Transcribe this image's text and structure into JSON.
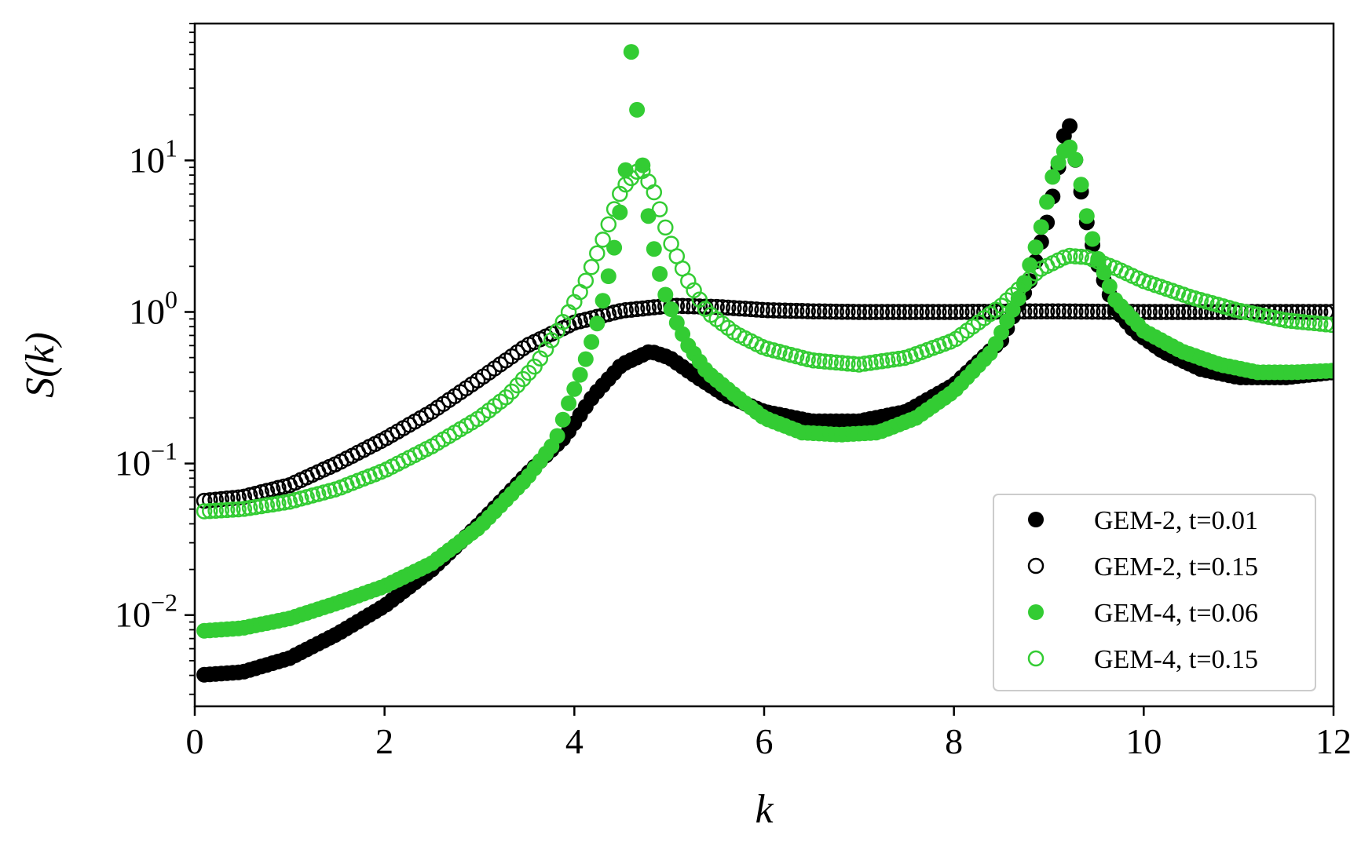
{
  "chart_data": {
    "type": "scatter",
    "title": "",
    "xlabel": "k",
    "ylabel": "S(k)",
    "xlim": [
      0,
      12
    ],
    "ylim": [
      0.0025,
      80
    ],
    "yscale": "log",
    "grid": false,
    "legend_position": "bottom-right",
    "x_ticks": [
      {
        "value": 0,
        "label": "0"
      },
      {
        "value": 2,
        "label": "2"
      },
      {
        "value": 4,
        "label": "4"
      },
      {
        "value": 6,
        "label": "6"
      },
      {
        "value": 8,
        "label": "8"
      },
      {
        "value": 10,
        "label": "10"
      },
      {
        "value": 12,
        "label": "12"
      }
    ],
    "y_ticks": [
      {
        "value": 0.01,
        "base": "10",
        "exp": "−2"
      },
      {
        "value": 0.1,
        "base": "10",
        "exp": "−1"
      },
      {
        "value": 1,
        "base": "10",
        "exp": "0"
      },
      {
        "value": 10,
        "base": "10",
        "exp": "1"
      }
    ],
    "series": [
      {
        "name": "GEM-2, t=0.01",
        "color": "#000000",
        "marker": "filled",
        "x_range": [
          0.1,
          12.0
        ],
        "x_step": 0.06,
        "curve": [
          [
            0.0,
            0.004
          ],
          [
            0.5,
            0.0042
          ],
          [
            1.0,
            0.0052
          ],
          [
            1.5,
            0.0075
          ],
          [
            2.0,
            0.0115
          ],
          [
            2.5,
            0.02
          ],
          [
            3.0,
            0.04
          ],
          [
            3.5,
            0.085
          ],
          [
            3.9,
            0.15
          ],
          [
            4.2,
            0.28
          ],
          [
            4.5,
            0.45
          ],
          [
            4.8,
            0.55
          ],
          [
            5.0,
            0.5
          ],
          [
            5.3,
            0.37
          ],
          [
            5.6,
            0.28
          ],
          [
            6.0,
            0.22
          ],
          [
            6.5,
            0.19
          ],
          [
            7.0,
            0.19
          ],
          [
            7.5,
            0.22
          ],
          [
            8.0,
            0.33
          ],
          [
            8.5,
            0.65
          ],
          [
            8.8,
            1.6
          ],
          [
            9.0,
            4.3
          ],
          [
            9.1,
            9.0
          ],
          [
            9.2,
            20.0
          ],
          [
            9.3,
            8.5
          ],
          [
            9.4,
            3.9
          ],
          [
            9.5,
            2.2
          ],
          [
            9.6,
            1.5
          ],
          [
            9.7,
            1.05
          ],
          [
            9.9,
            0.75
          ],
          [
            10.2,
            0.55
          ],
          [
            10.6,
            0.42
          ],
          [
            11.0,
            0.37
          ],
          [
            11.5,
            0.37
          ],
          [
            12.0,
            0.4
          ]
        ]
      },
      {
        "name": "GEM-2, t=0.15",
        "color": "#000000",
        "marker": "open",
        "x_range": [
          0.1,
          12.0
        ],
        "x_step": 0.06,
        "curve": [
          [
            0.0,
            0.056
          ],
          [
            0.5,
            0.06
          ],
          [
            1.0,
            0.072
          ],
          [
            1.5,
            0.1
          ],
          [
            2.0,
            0.145
          ],
          [
            2.5,
            0.22
          ],
          [
            3.0,
            0.36
          ],
          [
            3.5,
            0.6
          ],
          [
            4.0,
            0.85
          ],
          [
            4.5,
            1.02
          ],
          [
            5.0,
            1.1
          ],
          [
            5.5,
            1.08
          ],
          [
            6.0,
            1.03
          ],
          [
            6.5,
            1.01
          ],
          [
            7.0,
            1.0
          ],
          [
            8.0,
            1.0
          ],
          [
            9.0,
            1.01
          ],
          [
            10.0,
            1.0
          ],
          [
            11.0,
            1.0
          ],
          [
            12.0,
            1.0
          ]
        ]
      },
      {
        "name": "GEM-4, t=0.06",
        "color": "#33cc33",
        "marker": "filled",
        "x_range": [
          0.1,
          12.0
        ],
        "x_step": 0.06,
        "curve": [
          [
            0.0,
            0.0078
          ],
          [
            0.5,
            0.0082
          ],
          [
            1.0,
            0.0095
          ],
          [
            1.5,
            0.012
          ],
          [
            2.0,
            0.0155
          ],
          [
            2.5,
            0.022
          ],
          [
            3.0,
            0.038
          ],
          [
            3.5,
            0.08
          ],
          [
            3.8,
            0.14
          ],
          [
            3.95,
            0.26
          ],
          [
            4.05,
            0.37
          ],
          [
            4.15,
            0.55
          ],
          [
            4.25,
            0.88
          ],
          [
            4.35,
            1.6
          ],
          [
            4.45,
            3.3
          ],
          [
            4.55,
            9.6
          ],
          [
            4.6,
            52.0
          ],
          [
            4.7,
            12.0
          ],
          [
            4.78,
            4.3
          ],
          [
            4.86,
            2.2
          ],
          [
            4.96,
            1.3
          ],
          [
            5.06,
            0.9
          ],
          [
            5.2,
            0.6
          ],
          [
            5.4,
            0.4
          ],
          [
            5.7,
            0.28
          ],
          [
            6.0,
            0.2
          ],
          [
            6.4,
            0.16
          ],
          [
            6.8,
            0.155
          ],
          [
            7.2,
            0.16
          ],
          [
            7.6,
            0.2
          ],
          [
            8.0,
            0.3
          ],
          [
            8.4,
            0.55
          ],
          [
            8.7,
            1.3
          ],
          [
            8.9,
            3.2
          ],
          [
            9.05,
            8.3
          ],
          [
            9.2,
            13.0
          ],
          [
            9.3,
            9.5
          ],
          [
            9.4,
            4.3
          ],
          [
            9.5,
            2.4
          ],
          [
            9.7,
            1.2
          ],
          [
            10.0,
            0.75
          ],
          [
            10.4,
            0.55
          ],
          [
            10.8,
            0.45
          ],
          [
            11.2,
            0.4
          ],
          [
            11.6,
            0.4
          ],
          [
            12.0,
            0.41
          ]
        ]
      },
      {
        "name": "GEM-4, t=0.15",
        "color": "#33cc33",
        "marker": "open",
        "x_range": [
          0.1,
          12.0
        ],
        "x_step": 0.06,
        "curve": [
          [
            0.0,
            0.048
          ],
          [
            0.5,
            0.05
          ],
          [
            1.0,
            0.056
          ],
          [
            1.5,
            0.068
          ],
          [
            2.0,
            0.09
          ],
          [
            2.5,
            0.13
          ],
          [
            3.0,
            0.2
          ],
          [
            3.3,
            0.28
          ],
          [
            3.6,
            0.45
          ],
          [
            3.9,
            0.9
          ],
          [
            4.1,
            1.5
          ],
          [
            4.3,
            3.0
          ],
          [
            4.5,
            6.5
          ],
          [
            4.7,
            9.0
          ],
          [
            4.85,
            6.0
          ],
          [
            5.0,
            3.0
          ],
          [
            5.2,
            1.6
          ],
          [
            5.4,
            1.0
          ],
          [
            5.7,
            0.72
          ],
          [
            6.0,
            0.58
          ],
          [
            6.5,
            0.48
          ],
          [
            7.0,
            0.45
          ],
          [
            7.5,
            0.5
          ],
          [
            8.0,
            0.65
          ],
          [
            8.5,
            1.1
          ],
          [
            8.9,
            1.9
          ],
          [
            9.2,
            2.35
          ],
          [
            9.4,
            2.3
          ],
          [
            9.7,
            1.95
          ],
          [
            10.0,
            1.6
          ],
          [
            10.5,
            1.25
          ],
          [
            11.0,
            1.02
          ],
          [
            11.5,
            0.88
          ],
          [
            12.0,
            0.82
          ]
        ]
      }
    ]
  }
}
